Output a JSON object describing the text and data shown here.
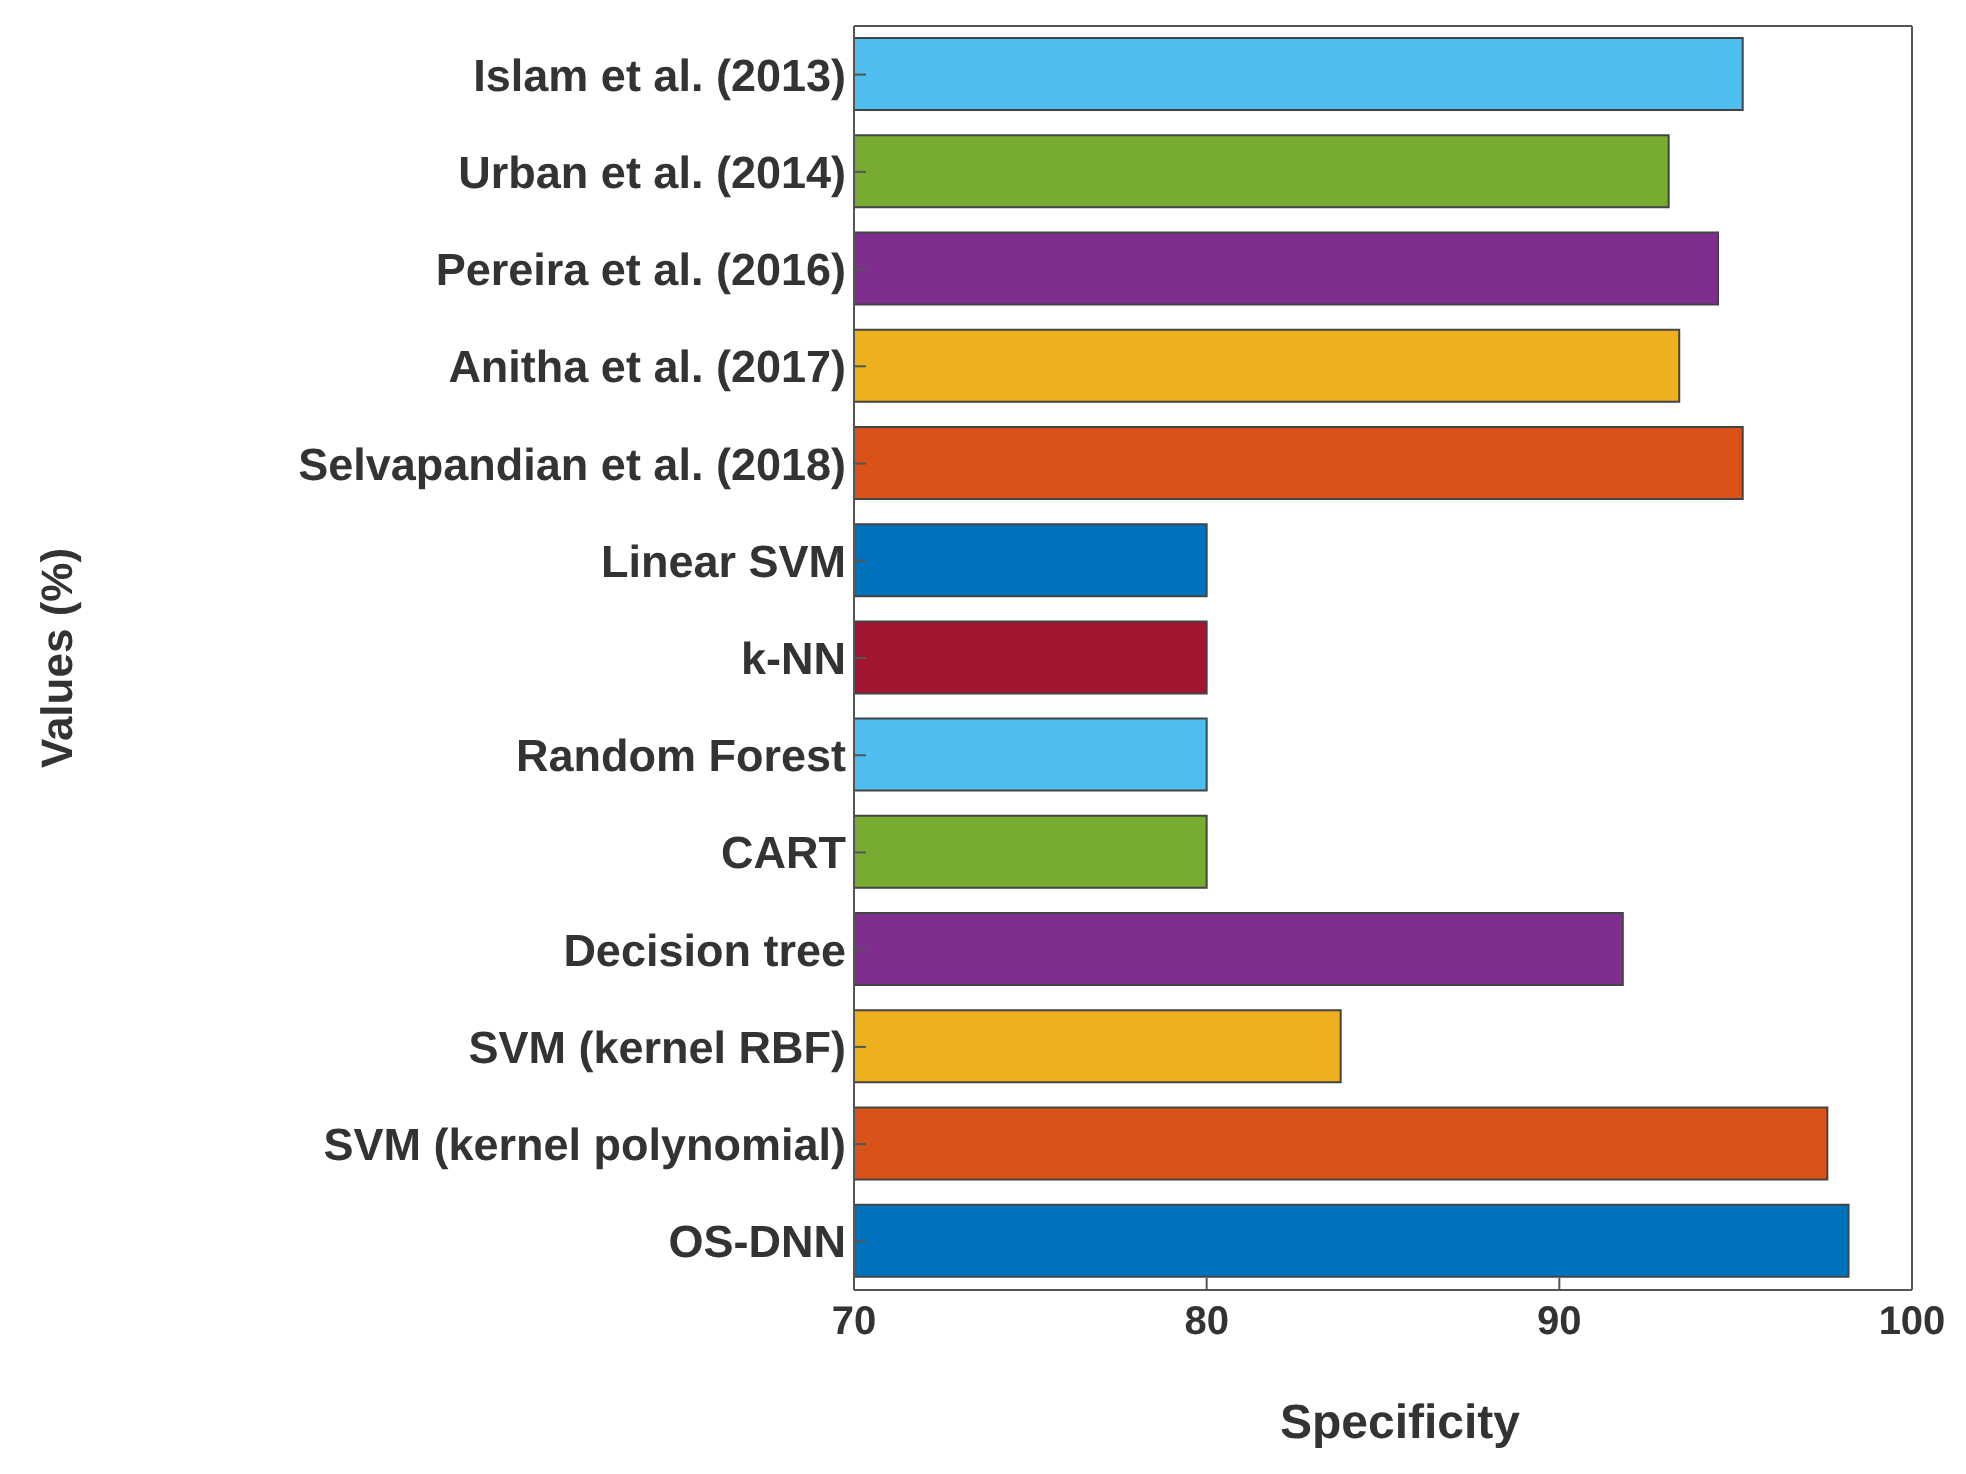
{
  "chart_data": {
    "type": "bar",
    "orientation": "horizontal",
    "xlabel": "Specificity",
    "ylabel": "Values (%)",
    "categories": [
      "Islam et al. (2013)",
      "Urban et al. (2014)",
      "Pereira et al. (2016)",
      "Anitha et al. (2017)",
      "Selvapandian et al. (2018)",
      "Linear SVM",
      "k-NN",
      "Random Forest",
      "CART",
      "Decision tree",
      "SVM (kernel RBF)",
      "SVM (kernel polynomial)",
      "OS-DNN"
    ],
    "values": [
      95.2,
      93.1,
      94.5,
      93.4,
      95.2,
      80,
      80,
      80,
      80,
      91.8,
      83.8,
      97.6,
      98.2
    ],
    "colors": [
      "#4dbeee",
      "#77ac30",
      "#7e2f8e",
      "#edb120",
      "#d95319",
      "#0072bd",
      "#a2142f",
      "#4dbeee",
      "#77ac30",
      "#7e2f8e",
      "#edb120",
      "#d95319",
      "#0072bd"
    ],
    "xlim": [
      70,
      100
    ],
    "xticks": [
      70,
      80,
      90,
      100
    ],
    "grid": false
  }
}
